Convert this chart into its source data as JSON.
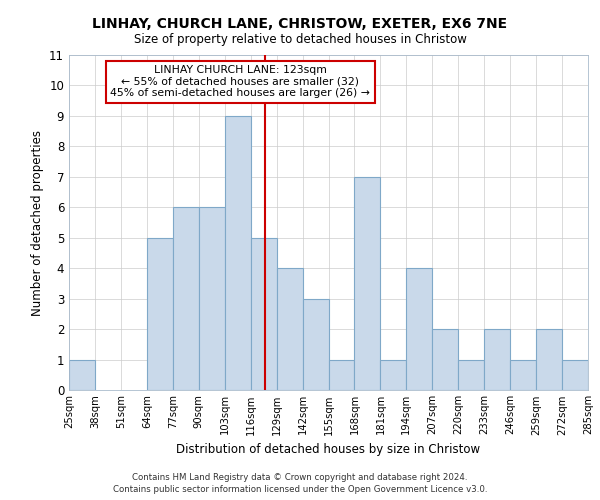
{
  "title": "LINHAY, CHURCH LANE, CHRISTOW, EXETER, EX6 7NE",
  "subtitle": "Size of property relative to detached houses in Christow",
  "xlabel": "Distribution of detached houses by size in Christow",
  "ylabel": "Number of detached properties",
  "bin_edges": [
    25,
    38,
    51,
    64,
    77,
    90,
    103,
    116,
    129,
    142,
    155,
    168,
    181,
    194,
    207,
    220,
    233,
    246,
    259,
    272,
    285
  ],
  "bin_labels": [
    "25sqm",
    "38sqm",
    "51sqm",
    "64sqm",
    "77sqm",
    "90sqm",
    "103sqm",
    "116sqm",
    "129sqm",
    "142sqm",
    "155sqm",
    "168sqm",
    "181sqm",
    "194sqm",
    "207sqm",
    "220sqm",
    "233sqm",
    "246sqm",
    "259sqm",
    "272sqm",
    "285sqm"
  ],
  "counts": [
    1,
    0,
    0,
    5,
    6,
    6,
    9,
    5,
    4,
    3,
    1,
    7,
    1,
    4,
    2,
    1,
    2,
    1,
    2,
    1
  ],
  "bar_color": "#c9d9ea",
  "bar_edge_color": "#7fa8c8",
  "grid_color": "#cccccc",
  "vline_x": 123,
  "vline_color": "#cc0000",
  "annotation_title": "LINHAY CHURCH LANE: 123sqm",
  "annotation_line1": "← 55% of detached houses are smaller (32)",
  "annotation_line2": "45% of semi-detached houses are larger (26) →",
  "annotation_box_color": "#ffffff",
  "annotation_box_edge": "#cc0000",
  "ylim": [
    0,
    11
  ],
  "yticks": [
    0,
    1,
    2,
    3,
    4,
    5,
    6,
    7,
    8,
    9,
    10,
    11
  ],
  "footnote1": "Contains HM Land Registry data © Crown copyright and database right 2024.",
  "footnote2": "Contains public sector information licensed under the Open Government Licence v3.0.",
  "background_color": "#ffffff"
}
